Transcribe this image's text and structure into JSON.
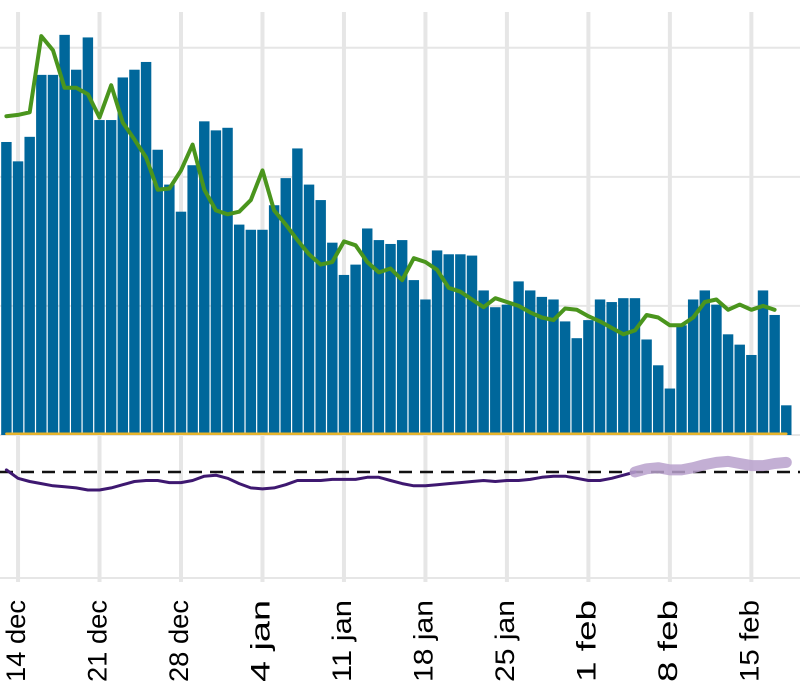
{
  "chart_data": [
    {
      "type": "bar",
      "categories": [
        null,
        "14 dec",
        null,
        null,
        null,
        null,
        null,
        null,
        "21 dec",
        null,
        null,
        null,
        null,
        null,
        null,
        "28 dec",
        null,
        null,
        null,
        null,
        null,
        null,
        "4 jan",
        null,
        null,
        null,
        null,
        null,
        null,
        "11 jan",
        null,
        null,
        null,
        null,
        null,
        null,
        "18 jan",
        null,
        null,
        null,
        null,
        null,
        null,
        "25 jan",
        null,
        null,
        null,
        null,
        null,
        null,
        "1 feb",
        null,
        null,
        null,
        null,
        null,
        null,
        "8 feb",
        null,
        null,
        null,
        null,
        null,
        null,
        "15 feb",
        null,
        null,
        null
      ],
      "series": [
        {
          "type": "bar",
          "color": "#00679b",
          "values": [
            227,
            212,
            231,
            279,
            279,
            310,
            283,
            308,
            244,
            244,
            277,
            283,
            289,
            221,
            194,
            173,
            209,
            243,
            236,
            238,
            163,
            159,
            159,
            178,
            199,
            222,
            194,
            182,
            149,
            124,
            132,
            160,
            151,
            148,
            151,
            120,
            105,
            143,
            140,
            140,
            139,
            112,
            99,
            101,
            119,
            112,
            107,
            105,
            88,
            75,
            89,
            105,
            103,
            106,
            106,
            74,
            54,
            36,
            85,
            105,
            112,
            101,
            78,
            70,
            62,
            112,
            93,
            23
          ]
        },
        {
          "type": "line",
          "color": "#4a951d",
          "values": [
            247,
            248,
            250,
            309,
            298,
            269,
            269,
            264,
            246,
            271,
            242,
            229,
            215,
            190,
            191,
            205,
            225,
            190,
            174,
            171,
            173,
            182,
            205,
            174,
            163,
            151,
            140,
            132,
            134,
            150,
            147,
            134,
            126,
            129,
            120,
            137,
            134,
            128,
            114,
            111,
            105,
            99,
            106,
            103,
            100,
            95,
            91,
            89,
            98,
            97,
            92,
            88,
            83,
            78,
            81,
            93,
            91,
            85,
            85,
            91,
            103,
            105,
            97,
            101,
            97,
            100,
            97,
            null
          ]
        },
        {
          "type": "line",
          "color": "#e8b42c",
          "values": [
            1,
            1,
            1,
            1,
            1,
            1,
            1,
            1,
            1,
            1,
            1,
            1,
            1,
            1,
            1,
            1,
            1,
            1,
            1,
            1,
            1,
            1,
            1,
            1,
            1,
            1,
            1,
            1,
            1,
            1,
            1,
            1,
            1,
            1,
            1,
            1,
            1,
            1,
            1,
            1,
            1,
            1,
            1,
            1,
            1,
            1,
            1,
            1,
            1,
            1,
            1,
            1,
            1,
            1,
            1,
            1,
            1,
            1,
            1,
            1,
            1,
            1,
            1,
            1,
            1,
            1,
            1,
            1
          ]
        }
      ],
      "ylim": [
        0,
        337
      ],
      "yticks": [
        0,
        100,
        200,
        300
      ],
      "grid": true
    },
    {
      "type": "line",
      "series": [
        {
          "color": "#3e1870",
          "values": [
            0.02,
            -0.06,
            -0.09,
            -0.11,
            -0.13,
            -0.14,
            -0.15,
            -0.17,
            -0.17,
            -0.15,
            -0.12,
            -0.09,
            -0.08,
            -0.08,
            -0.1,
            -0.1,
            -0.08,
            -0.04,
            -0.03,
            -0.06,
            -0.11,
            -0.15,
            -0.16,
            -0.15,
            -0.12,
            -0.08,
            -0.08,
            -0.08,
            -0.07,
            -0.07,
            -0.07,
            -0.05,
            -0.05,
            -0.08,
            -0.11,
            -0.13,
            -0.13,
            -0.12,
            -0.11,
            -0.1,
            -0.09,
            -0.08,
            -0.09,
            -0.08,
            -0.08,
            -0.07,
            -0.05,
            -0.04,
            -0.04,
            -0.06,
            -0.08,
            -0.08,
            -0.06,
            -0.03,
            0,
            null,
            null,
            null,
            null,
            null,
            null,
            null,
            null,
            null,
            null,
            null,
            null,
            null
          ]
        },
        {
          "color": "#b9a1cd",
          "values": [
            null,
            null,
            null,
            null,
            null,
            null,
            null,
            null,
            null,
            null,
            null,
            null,
            null,
            null,
            null,
            null,
            null,
            null,
            null,
            null,
            null,
            null,
            null,
            null,
            null,
            null,
            null,
            null,
            null,
            null,
            null,
            null,
            null,
            null,
            null,
            null,
            null,
            null,
            null,
            null,
            null,
            null,
            null,
            null,
            null,
            null,
            null,
            null,
            null,
            null,
            null,
            null,
            null,
            null,
            0,
            0.03,
            0.04,
            0.02,
            0.02,
            0.04,
            0.07,
            0.09,
            0.1,
            0.08,
            0.06,
            0.06,
            0.08,
            0.09
          ]
        }
      ],
      "ylim": [
        -1.1,
        0.23
      ],
      "yticks": [
        -1
      ],
      "reference_line": 0,
      "grid": true
    }
  ]
}
